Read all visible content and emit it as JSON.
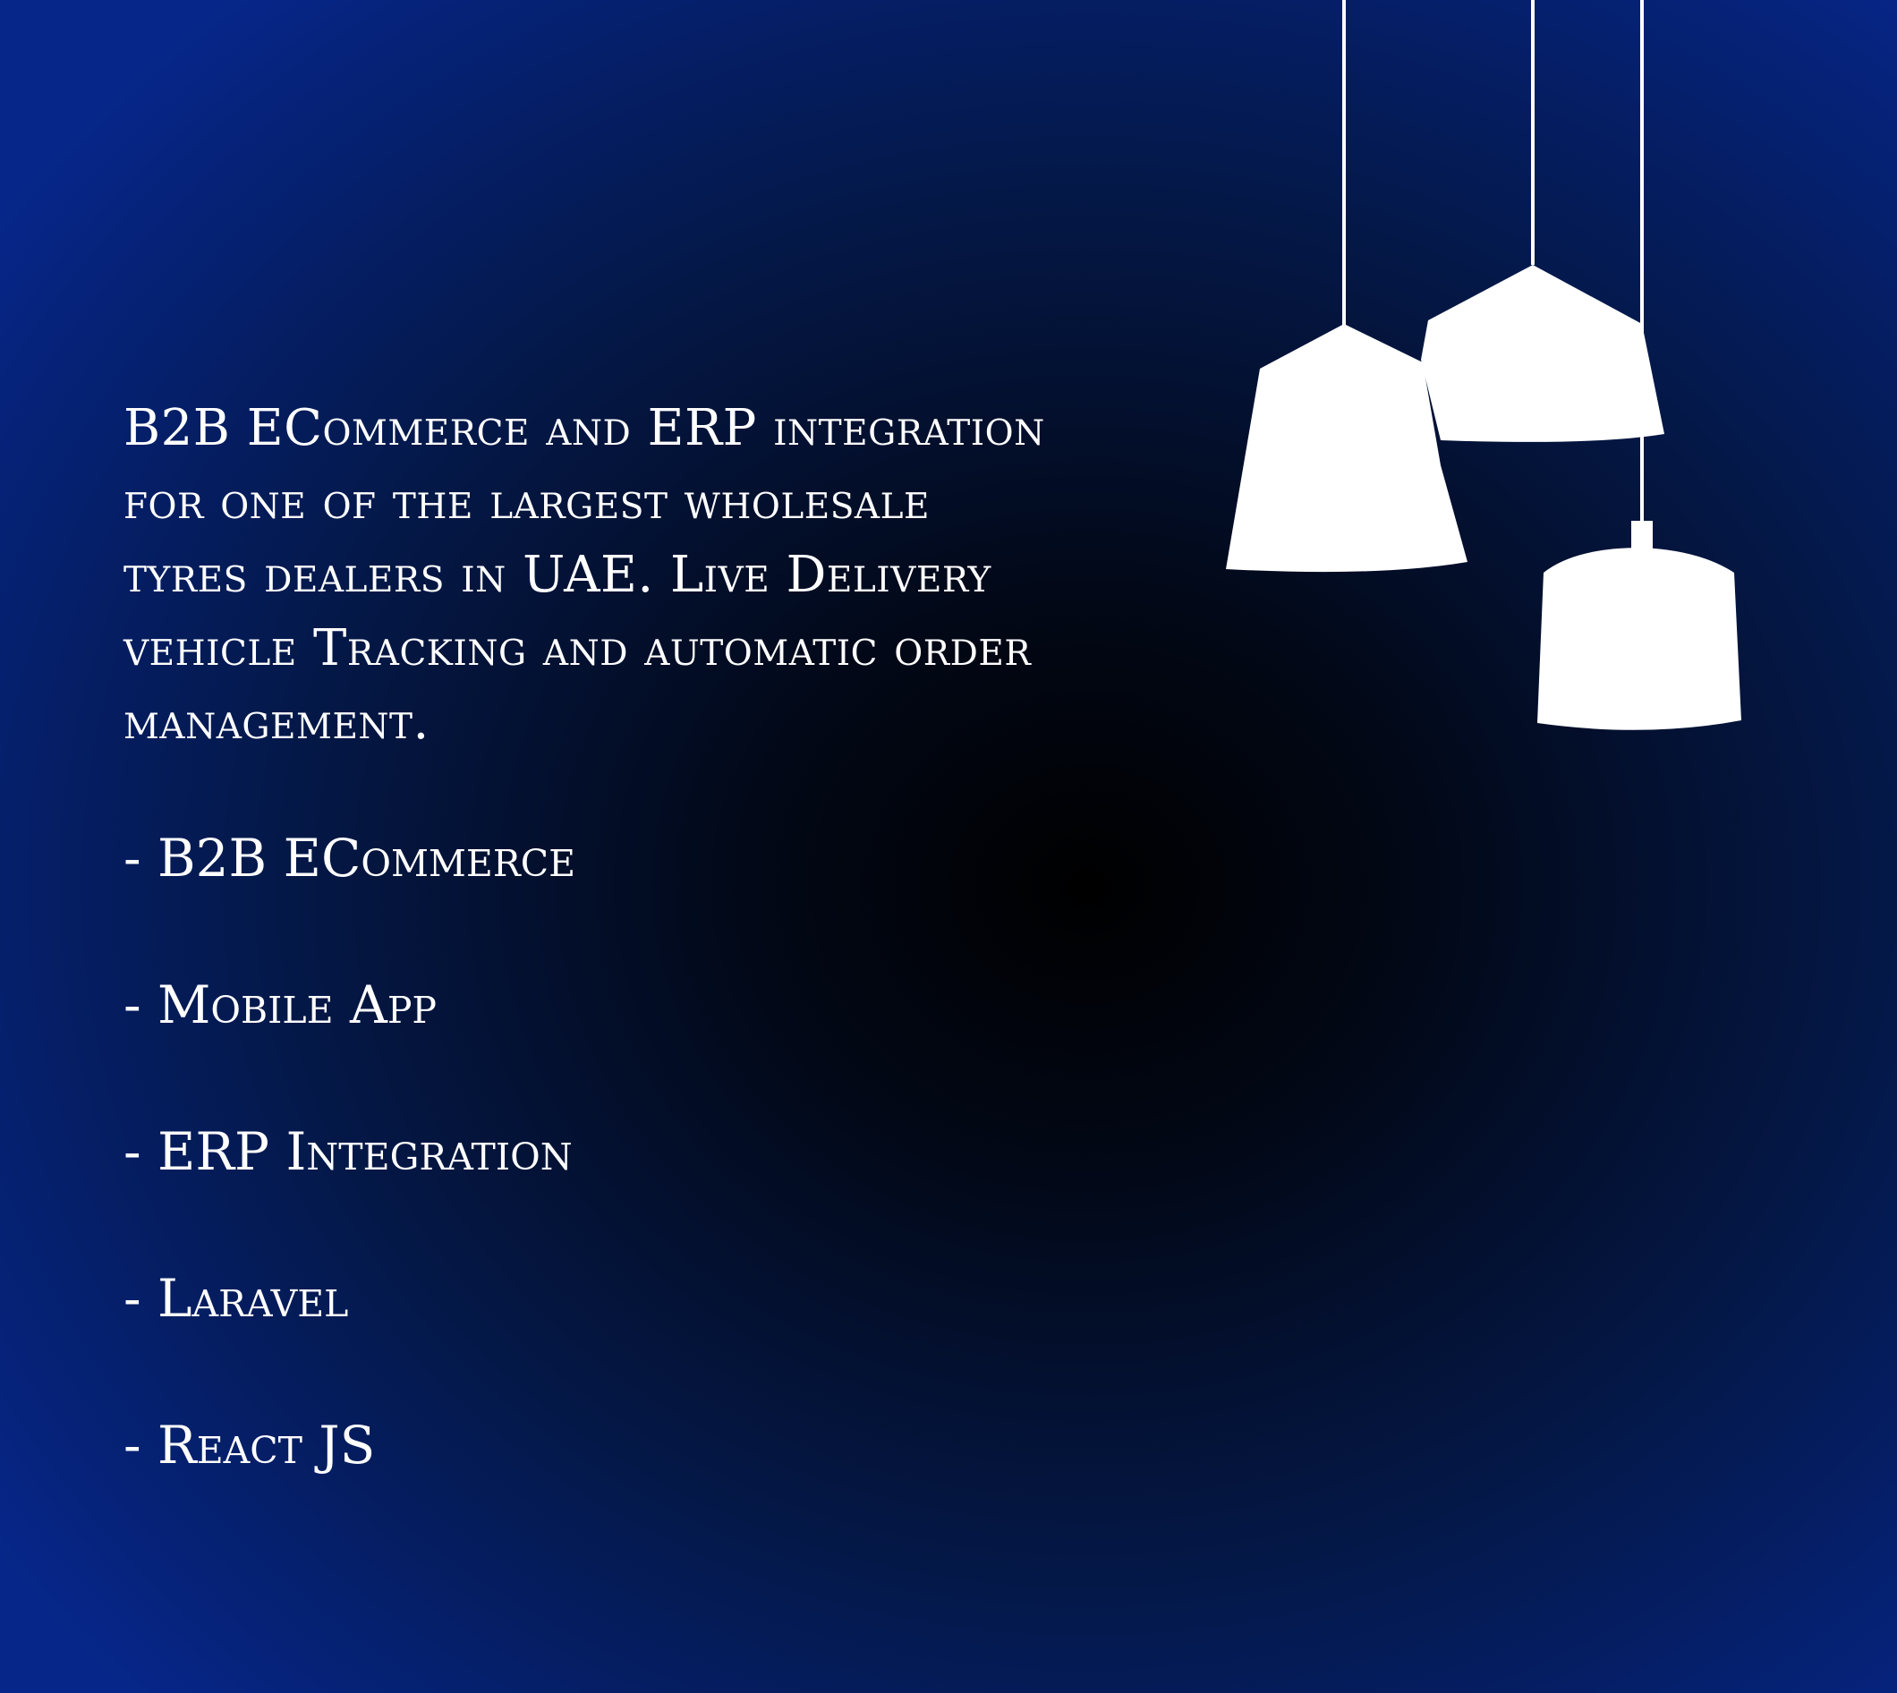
{
  "description": "B2B ECommerce and ERP integration\nfor one of the largest wholesale\ntyres dealers in UAE. Live Delivery\nvehicle Tracking and automatic order\nmanagement.",
  "tech_items": [
    "- B2B ECommerce",
    "- Mobile App",
    "- ERP Integration",
    "- Laravel",
    "- React JS"
  ],
  "decoration": {
    "icon": "pendant-lamps-icon",
    "color": "#ffffff"
  },
  "colors": {
    "background_center": "#000000",
    "background_edge": "#06268a",
    "text": "#ffffff"
  }
}
